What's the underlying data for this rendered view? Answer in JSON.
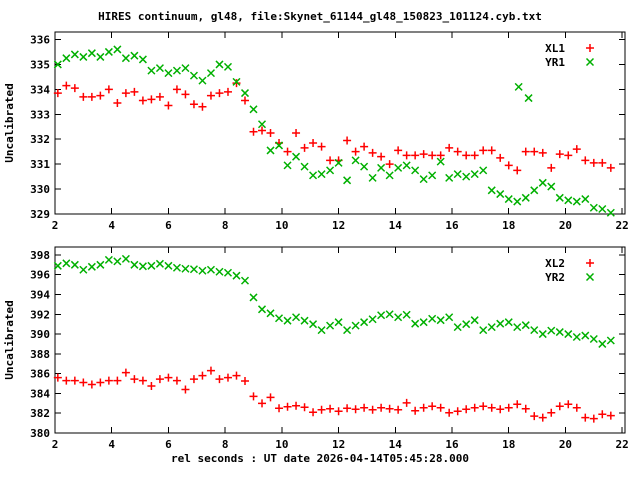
{
  "title": "HIRES continuum, gl48, file:Skynet_61144_gl48_150823_101124.cyb.txt",
  "xlabel": "rel seconds : UT date 2026-04-14T05:45:28.000",
  "colors": {
    "xl_series": "#ff0000",
    "yr_series": "#00b000",
    "text": "#000000",
    "background": "#ffffff"
  },
  "chart_data": [
    {
      "type": "scatter",
      "panel": "top",
      "ylabel": "Uncalibrated",
      "xlim": [
        2,
        22.1
      ],
      "ylim": [
        329,
        336.3
      ],
      "xticks": [
        2,
        4,
        6,
        8,
        10,
        12,
        14,
        16,
        18,
        20,
        22
      ],
      "yticks": [
        329,
        330,
        331,
        332,
        333,
        334,
        335,
        336
      ],
      "grid": false,
      "legend_position": "top-right-inside",
      "series": [
        {
          "name": "XL1",
          "marker": "plus",
          "color": "#ff0000",
          "x": [
            2.1,
            2.4,
            2.7,
            3.0,
            3.3,
            3.6,
            3.9,
            4.2,
            4.5,
            4.8,
            5.1,
            5.4,
            5.7,
            6.0,
            6.3,
            6.6,
            6.9,
            7.2,
            7.5,
            7.8,
            8.1,
            8.4,
            8.7,
            9.0,
            9.3,
            9.6,
            9.9,
            10.2,
            10.5,
            10.8,
            11.1,
            11.4,
            11.7,
            12.0,
            12.3,
            12.6,
            12.9,
            13.2,
            13.5,
            13.8,
            14.1,
            14.4,
            14.7,
            15.0,
            15.3,
            15.6,
            15.9,
            16.2,
            16.5,
            16.8,
            17.1,
            17.4,
            17.7,
            18.0,
            18.3,
            18.6,
            18.9,
            19.2,
            19.5,
            19.8,
            20.1,
            20.4,
            20.7,
            21.0,
            21.3,
            21.6
          ],
          "y": [
            333.85,
            334.15,
            334.05,
            333.7,
            333.7,
            333.75,
            334.0,
            333.45,
            333.85,
            333.9,
            333.55,
            333.6,
            333.7,
            333.35,
            334.0,
            333.8,
            333.4,
            333.3,
            333.75,
            333.85,
            333.9,
            334.25,
            333.55,
            332.3,
            332.35,
            332.25,
            331.85,
            331.5,
            332.25,
            331.65,
            331.85,
            331.7,
            331.15,
            331.15,
            331.95,
            331.5,
            331.7,
            331.45,
            331.3,
            331.0,
            331.55,
            331.35,
            331.35,
            331.4,
            331.35,
            331.35,
            331.65,
            331.5,
            331.35,
            331.35,
            331.55,
            331.55,
            331.25,
            330.95,
            330.75,
            331.5,
            331.5,
            331.45,
            330.85,
            331.4,
            331.35,
            331.6,
            331.15,
            331.05,
            331.05,
            330.85
          ]
        },
        {
          "name": "YR1",
          "marker": "cross",
          "color": "#00b000",
          "x": [
            2.1,
            2.4,
            2.7,
            3.0,
            3.3,
            3.6,
            3.9,
            4.2,
            4.5,
            4.8,
            5.1,
            5.4,
            5.7,
            6.0,
            6.3,
            6.6,
            6.9,
            7.2,
            7.5,
            7.8,
            8.1,
            8.4,
            8.7,
            9.0,
            9.3,
            9.6,
            9.9,
            10.2,
            10.5,
            10.8,
            11.1,
            11.4,
            11.7,
            12.0,
            12.3,
            12.6,
            12.9,
            13.2,
            13.5,
            13.8,
            14.1,
            14.4,
            14.7,
            15.0,
            15.3,
            15.6,
            15.9,
            16.2,
            16.5,
            16.8,
            17.1,
            17.4,
            17.7,
            18.0,
            18.3,
            18.35,
            18.6,
            18.7,
            18.9,
            19.2,
            19.5,
            19.8,
            20.1,
            20.4,
            20.7,
            21.0,
            21.3,
            21.6
          ],
          "y": [
            335.0,
            335.25,
            335.4,
            335.3,
            335.45,
            335.3,
            335.5,
            335.6,
            335.25,
            335.35,
            335.2,
            334.75,
            334.85,
            334.65,
            334.75,
            334.85,
            334.55,
            334.35,
            334.65,
            335.0,
            334.9,
            334.3,
            333.85,
            333.2,
            332.6,
            331.55,
            331.75,
            330.95,
            331.3,
            330.9,
            330.55,
            330.6,
            330.75,
            331.05,
            330.35,
            331.15,
            330.9,
            330.45,
            330.85,
            330.55,
            330.85,
            330.95,
            330.75,
            330.4,
            330.55,
            331.1,
            330.45,
            330.6,
            330.5,
            330.6,
            330.75,
            329.95,
            329.8,
            329.6,
            329.5,
            334.1,
            329.65,
            333.65,
            329.95,
            330.25,
            330.1,
            329.65,
            329.55,
            329.5,
            329.6,
            329.25,
            329.2,
            329.05
          ]
        }
      ]
    },
    {
      "type": "scatter",
      "panel": "bottom",
      "ylabel": "Uncalibrated",
      "xlim": [
        2,
        22.1
      ],
      "ylim": [
        380,
        398.8
      ],
      "xticks": [
        2,
        4,
        6,
        8,
        10,
        12,
        14,
        16,
        18,
        20,
        22
      ],
      "yticks": [
        380,
        382,
        384,
        386,
        388,
        390,
        392,
        394,
        396,
        398
      ],
      "grid": false,
      "legend_position": "top-right-inside",
      "series": [
        {
          "name": "XL2",
          "marker": "plus",
          "color": "#ff0000",
          "x": [
            2.1,
            2.4,
            2.7,
            3.0,
            3.3,
            3.6,
            3.9,
            4.2,
            4.5,
            4.8,
            5.1,
            5.4,
            5.7,
            6.0,
            6.3,
            6.6,
            6.9,
            7.2,
            7.5,
            7.8,
            8.1,
            8.4,
            8.7,
            9.0,
            9.3,
            9.6,
            9.9,
            10.2,
            10.5,
            10.8,
            11.1,
            11.4,
            11.7,
            12.0,
            12.3,
            12.6,
            12.9,
            13.2,
            13.5,
            13.8,
            14.1,
            14.4,
            14.7,
            15.0,
            15.3,
            15.6,
            15.9,
            16.2,
            16.5,
            16.8,
            17.1,
            17.4,
            17.7,
            18.0,
            18.3,
            18.6,
            18.9,
            19.2,
            19.5,
            19.8,
            20.1,
            20.4,
            20.7,
            21.0,
            21.3,
            21.6
          ],
          "y": [
            385.6,
            385.3,
            385.3,
            385.1,
            384.9,
            385.1,
            385.3,
            385.3,
            386.1,
            385.45,
            385.3,
            384.75,
            385.45,
            385.6,
            385.3,
            384.4,
            385.45,
            385.8,
            386.3,
            385.45,
            385.6,
            385.8,
            385.25,
            383.7,
            383.0,
            383.6,
            382.5,
            382.65,
            382.75,
            382.6,
            382.1,
            382.35,
            382.45,
            382.2,
            382.5,
            382.4,
            382.55,
            382.35,
            382.55,
            382.45,
            382.35,
            383.05,
            382.25,
            382.55,
            382.7,
            382.55,
            382.05,
            382.2,
            382.4,
            382.55,
            382.7,
            382.55,
            382.4,
            382.55,
            382.9,
            382.45,
            381.7,
            381.55,
            382.05,
            382.7,
            382.9,
            382.55,
            381.55,
            381.45,
            381.9,
            381.75
          ]
        },
        {
          "name": "YR2",
          "marker": "cross",
          "color": "#00b000",
          "x": [
            2.1,
            2.4,
            2.7,
            3.0,
            3.3,
            3.6,
            3.9,
            4.2,
            4.5,
            4.8,
            5.1,
            5.4,
            5.7,
            6.0,
            6.3,
            6.6,
            6.9,
            7.2,
            7.5,
            7.8,
            8.1,
            8.4,
            8.7,
            9.0,
            9.3,
            9.6,
            9.9,
            10.2,
            10.5,
            10.8,
            11.1,
            11.4,
            11.7,
            12.0,
            12.3,
            12.6,
            12.9,
            13.2,
            13.5,
            13.8,
            14.1,
            14.4,
            14.7,
            15.0,
            15.3,
            15.6,
            15.9,
            16.2,
            16.5,
            16.8,
            17.1,
            17.4,
            17.7,
            18.0,
            18.3,
            18.6,
            18.9,
            19.2,
            19.5,
            19.8,
            20.1,
            20.4,
            20.7,
            21.0,
            21.3,
            21.6
          ],
          "y": [
            396.9,
            397.15,
            397.0,
            396.5,
            396.8,
            397.0,
            397.5,
            397.35,
            397.6,
            397.0,
            396.85,
            396.9,
            397.1,
            396.9,
            396.7,
            396.6,
            396.55,
            396.4,
            396.5,
            396.3,
            396.2,
            395.9,
            395.4,
            393.7,
            392.5,
            392.1,
            391.6,
            391.35,
            391.7,
            391.35,
            391.0,
            390.4,
            390.85,
            391.2,
            390.4,
            390.85,
            391.2,
            391.5,
            391.9,
            392.0,
            391.7,
            391.95,
            391.05,
            391.2,
            391.55,
            391.4,
            391.7,
            390.7,
            391.0,
            391.4,
            390.4,
            390.7,
            391.05,
            391.2,
            390.7,
            390.9,
            390.4,
            390.0,
            390.35,
            390.2,
            390.0,
            389.7,
            389.85,
            389.5,
            389.0,
            389.35
          ]
        }
      ]
    }
  ]
}
